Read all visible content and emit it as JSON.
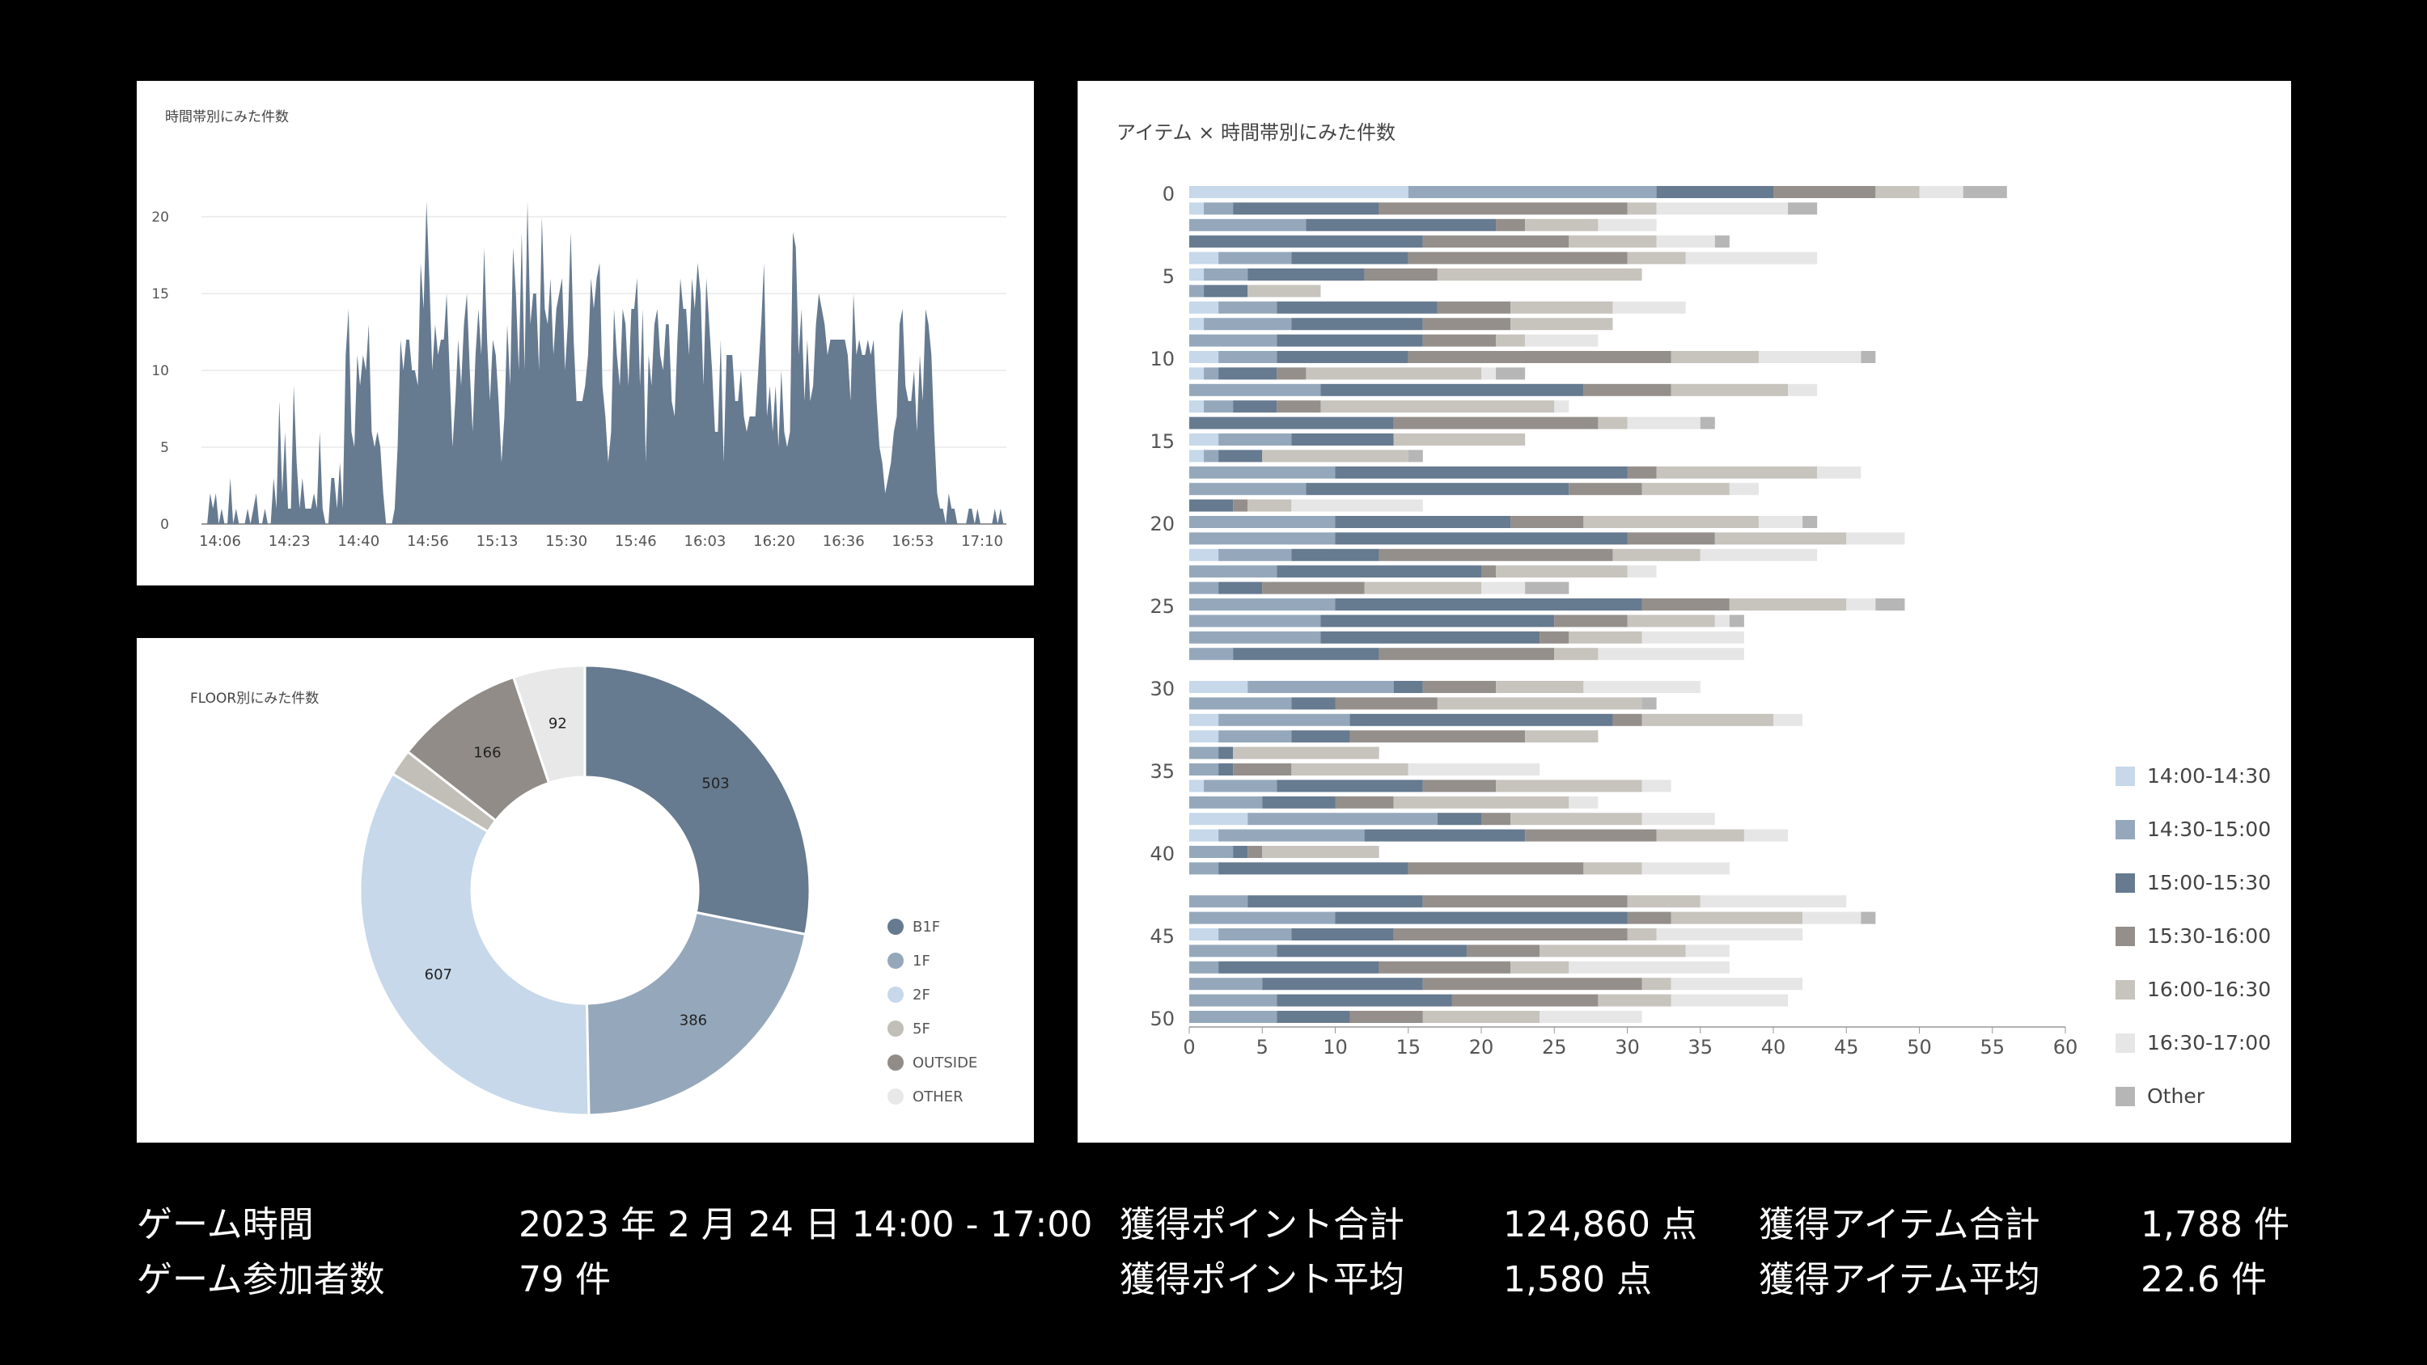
{
  "colors": {
    "background": "#000000",
    "s1430": "#c6d8ea",
    "s1500": "#95a8bb",
    "s1530": "#667a90",
    "s1600": "#948f8b",
    "s1630": "#c7c3bd",
    "s1700": "#e6e6e6",
    "other": "#b6b6b6"
  },
  "chart_data": [
    {
      "type": "area",
      "title": "時間帯別にみた件数",
      "x_tick_labels": [
        "14:06",
        "14:23",
        "14:40",
        "14:56",
        "15:13",
        "15:30",
        "15:46",
        "16:03",
        "16:20",
        "16:36",
        "16:53",
        "17:10"
      ],
      "ylim": [
        0,
        22
      ],
      "y_ticks": [
        0,
        5,
        10,
        15,
        20
      ],
      "grid": true,
      "color": "#667a90",
      "values": [
        0,
        0,
        0,
        2,
        1,
        2,
        0,
        1,
        0,
        0,
        3,
        0,
        1,
        0,
        0,
        0,
        1,
        0,
        1,
        2,
        0,
        0,
        1,
        0,
        0,
        3,
        1,
        8,
        2,
        6,
        1,
        1,
        9,
        4,
        1,
        3,
        1,
        1,
        1,
        2,
        1,
        6,
        1,
        0,
        0,
        3,
        3,
        1,
        4,
        1,
        11,
        14,
        6,
        5,
        11,
        9,
        11,
        10,
        13,
        6,
        5,
        6,
        5,
        2,
        0,
        0,
        0,
        1,
        5,
        12,
        10,
        12,
        12,
        10,
        10,
        9,
        17,
        14,
        21,
        16,
        10,
        13,
        11,
        12,
        12,
        15,
        10,
        5,
        8,
        12,
        9,
        13,
        15,
        10,
        6,
        11,
        14,
        11,
        18,
        12,
        8,
        12,
        11,
        8,
        4,
        7,
        13,
        9,
        18,
        15,
        10,
        19,
        10,
        21,
        13,
        15,
        15,
        10,
        20,
        14,
        13,
        16,
        11,
        14,
        15,
        16,
        10,
        13,
        19,
        12,
        8,
        8,
        8,
        9,
        11,
        16,
        14,
        16,
        17,
        9,
        7,
        4,
        6,
        14,
        11,
        9,
        14,
        13,
        9,
        14,
        14,
        16,
        9,
        14,
        4,
        11,
        9,
        13,
        14,
        11,
        10,
        13,
        13,
        8,
        7,
        12,
        16,
        14,
        14,
        11,
        16,
        14,
        17,
        15,
        9,
        16,
        13,
        10,
        6,
        6,
        12,
        4,
        11,
        11,
        11,
        8,
        8,
        10,
        7,
        6,
        7,
        7,
        7,
        10,
        13,
        17,
        7,
        9,
        6,
        9,
        5,
        10,
        6,
        5,
        6,
        19,
        18,
        11,
        14,
        8,
        12,
        8,
        9,
        13,
        15,
        14,
        13,
        11,
        12,
        12,
        12,
        12,
        12,
        12,
        11,
        8,
        15,
        11,
        12,
        11,
        11,
        12,
        11,
        12,
        8,
        5,
        4,
        2,
        3,
        4,
        6,
        7,
        13,
        14,
        9,
        8,
        8,
        10,
        6,
        11,
        8,
        14,
        13,
        11,
        6,
        2,
        1,
        1,
        0,
        2,
        1,
        1,
        0,
        0,
        0,
        0,
        1,
        1,
        0,
        1,
        0,
        0,
        0,
        0,
        0,
        1,
        0,
        1,
        0,
        0
      ],
      "x_range": [
        "14:00",
        "17:12"
      ]
    },
    {
      "type": "pie",
      "title": "FLOOR別にみた件数",
      "donut": true,
      "legend_position": "right",
      "slices": [
        {
          "label": "B1F",
          "value": 503,
          "color": "#667a90",
          "show_label": true
        },
        {
          "label": "1F",
          "value": 386,
          "color": "#95a8bb",
          "show_label": true
        },
        {
          "label": "2F",
          "value": 607,
          "color": "#c6d8ea",
          "show_label": true
        },
        {
          "label": "5F",
          "value": 34,
          "color": "#c2bfb9",
          "show_label": false
        },
        {
          "label": "OUTSIDE",
          "value": 166,
          "color": "#918c87",
          "show_label": true
        },
        {
          "label": "OTHER",
          "value": 92,
          "color": "#e8e8e8",
          "show_label": true
        }
      ]
    },
    {
      "type": "bar",
      "orientation": "horizontal",
      "stacked": true,
      "title": "アイテム × 時間帯別にみた件数",
      "y_ticks": [
        0,
        5,
        10,
        15,
        20,
        25,
        30,
        35,
        40,
        45,
        50
      ],
      "x_ticks": [
        0,
        5,
        10,
        15,
        20,
        25,
        30,
        35,
        40,
        45,
        50,
        55,
        60
      ],
      "xlim": [
        0,
        60
      ],
      "ylim": [
        0,
        50
      ],
      "legend_position": "right",
      "series": [
        {
          "name": "14:00-14:30",
          "color": "#c6d8ea"
        },
        {
          "name": "14:30-15:00",
          "color": "#95a8bb"
        },
        {
          "name": "15:00-15:30",
          "color": "#667a90"
        },
        {
          "name": "15:30-16:00",
          "color": "#948f8b"
        },
        {
          "name": "16:00-16:30",
          "color": "#c7c3bd"
        },
        {
          "name": "16:30-17:00",
          "color": "#e6e6e6"
        },
        {
          "name": "Other",
          "color": "#b6b6b6"
        }
      ],
      "rows": [
        [
          15,
          17,
          8,
          7,
          3,
          3,
          3
        ],
        [
          1,
          2,
          10,
          17,
          2,
          9,
          2
        ],
        [
          0,
          8,
          13,
          2,
          5,
          4,
          0
        ],
        [
          0,
          0,
          16,
          10,
          6,
          4,
          1
        ],
        [
          2,
          5,
          8,
          15,
          4,
          9,
          0
        ],
        [
          1,
          3,
          8,
          5,
          14,
          0,
          0
        ],
        [
          0,
          1,
          3,
          0,
          5,
          0,
          0
        ],
        [
          2,
          4,
          11,
          5,
          7,
          5,
          0
        ],
        [
          1,
          6,
          9,
          6,
          7,
          0,
          0
        ],
        [
          0,
          6,
          10,
          5,
          2,
          5,
          0
        ],
        [
          2,
          4,
          9,
          18,
          6,
          7,
          1
        ],
        [
          1,
          1,
          4,
          2,
          12,
          1,
          2
        ],
        [
          0,
          9,
          18,
          6,
          8,
          2,
          0
        ],
        [
          1,
          2,
          3,
          3,
          16,
          1,
          0
        ],
        [
          0,
          0,
          14,
          14,
          2,
          5,
          1
        ],
        [
          2,
          5,
          7,
          0,
          9,
          0,
          0
        ],
        [
          1,
          1,
          3,
          0,
          10,
          0,
          1
        ],
        [
          0,
          10,
          20,
          2,
          11,
          3,
          0
        ],
        [
          0,
          8,
          18,
          5,
          6,
          2,
          0
        ],
        [
          0,
          0,
          3,
          1,
          3,
          9,
          0
        ],
        [
          0,
          10,
          12,
          5,
          12,
          3,
          1
        ],
        [
          0,
          10,
          20,
          6,
          9,
          4,
          0
        ],
        [
          2,
          5,
          6,
          16,
          6,
          8,
          0
        ],
        [
          0,
          6,
          14,
          1,
          9,
          2,
          0
        ],
        [
          0,
          2,
          3,
          7,
          8,
          3,
          3
        ],
        [
          0,
          10,
          21,
          6,
          8,
          2,
          2
        ],
        [
          0,
          9,
          16,
          5,
          6,
          1,
          1
        ],
        [
          0,
          9,
          15,
          2,
          5,
          7,
          0
        ],
        [
          0,
          3,
          10,
          12,
          3,
          10,
          0
        ],
        [
          0,
          0,
          0,
          0,
          0,
          0,
          0
        ],
        [
          4,
          10,
          2,
          5,
          6,
          8,
          0
        ],
        [
          0,
          7,
          3,
          7,
          14,
          0,
          1
        ],
        [
          2,
          9,
          18,
          2,
          9,
          2,
          0
        ],
        [
          2,
          5,
          4,
          12,
          5,
          0,
          0
        ],
        [
          0,
          2,
          1,
          0,
          10,
          0,
          0
        ],
        [
          0,
          2,
          1,
          4,
          8,
          9,
          0
        ],
        [
          1,
          5,
          10,
          5,
          10,
          2,
          0
        ],
        [
          0,
          5,
          5,
          4,
          12,
          2,
          0
        ],
        [
          4,
          13,
          3,
          2,
          9,
          5,
          0
        ],
        [
          2,
          10,
          11,
          9,
          6,
          3,
          0
        ],
        [
          0,
          3,
          1,
          1,
          8,
          0,
          0
        ],
        [
          0,
          2,
          13,
          12,
          4,
          6,
          0
        ],
        [
          0,
          0,
          0,
          0,
          0,
          0,
          0
        ],
        [
          0,
          4,
          12,
          14,
          5,
          10,
          0
        ],
        [
          0,
          10,
          20,
          3,
          9,
          4,
          1
        ],
        [
          2,
          5,
          7,
          16,
          2,
          10,
          0
        ],
        [
          0,
          6,
          13,
          5,
          10,
          3,
          0
        ],
        [
          0,
          2,
          11,
          9,
          4,
          11,
          0
        ],
        [
          0,
          5,
          11,
          15,
          2,
          9,
          0
        ],
        [
          0,
          6,
          12,
          10,
          5,
          8,
          0
        ],
        [
          0,
          6,
          5,
          5,
          8,
          7,
          0
        ]
      ]
    }
  ],
  "stats": {
    "game_time_label": "ゲーム時間",
    "game_time_value": "2023 年 2 月 24 日 14:00 - 17:00",
    "participants_label": "ゲーム参加者数",
    "participants_value": "79 件",
    "points_total_label": "獲得ポイント合計",
    "points_total_value": "124,860 点",
    "points_avg_label": "獲得ポイント平均",
    "points_avg_value": "1,580 点",
    "items_total_label": "獲得アイテム合計",
    "items_total_value": "1,788 件",
    "items_avg_label": "獲得アイテム平均",
    "items_avg_value": "22.6 件"
  }
}
